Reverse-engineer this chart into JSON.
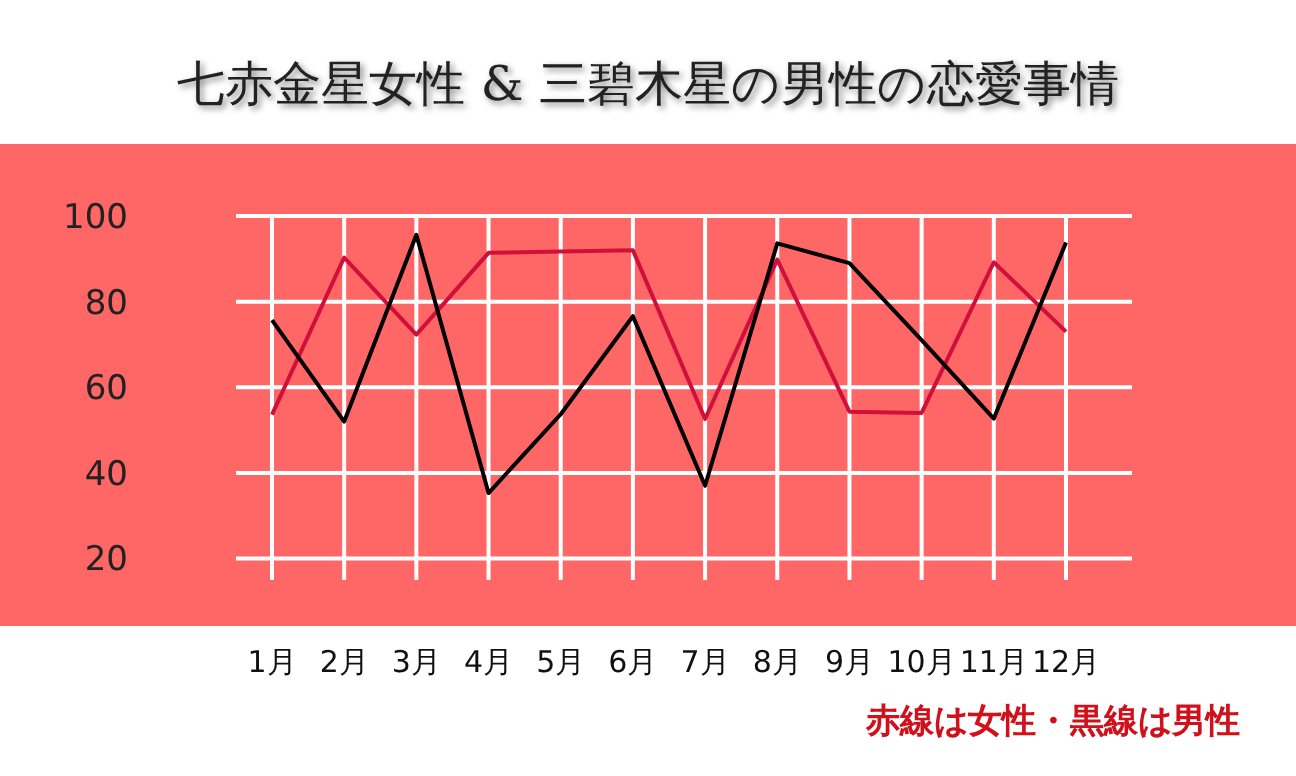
{
  "chart_data": {
    "type": "line",
    "title": "七赤金星女性 & 三碧木星の男性の恋愛事情",
    "categories": [
      "1月",
      "2月",
      "3月",
      "4月",
      "5月",
      "6月",
      "7月",
      "8月",
      "9月",
      "10月",
      "11月",
      "12月"
    ],
    "series": [
      {
        "color": "#d0103a",
        "values": [
          53.6,
          90.3,
          72.3,
          91.4,
          91.7,
          92,
          52.6,
          89.8,
          54.3,
          54,
          89.2,
          73
        ]
      },
      {
        "color": "#000000",
        "values": [
          75.7,
          52,
          95.6,
          35.3,
          53.7,
          76.6,
          37,
          93.6,
          89,
          71,
          52.7,
          93.8
        ]
      }
    ],
    "ylim": [
      15,
      100
    ],
    "yticks": [
      20,
      40,
      60,
      80,
      100
    ],
    "grid": true,
    "annotations": [
      "赤線は女性・黒線は男性"
    ]
  }
}
